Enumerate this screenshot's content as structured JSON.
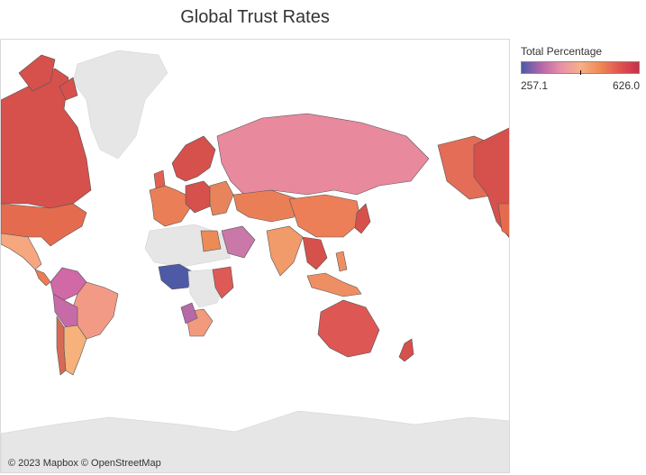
{
  "title": "Global Trust Rates",
  "legend": {
    "title": "Total Percentage",
    "min_label": "257.1",
    "max_label": "626.0",
    "min": 257.1,
    "max": 626.0,
    "colors": [
      "#4a5aa8",
      "#b566a8",
      "#e98fa8",
      "#f6b089",
      "#ef8a55",
      "#e0544f",
      "#c8304a"
    ]
  },
  "map": {
    "no_data_color": "#e6e6e6",
    "ocean_color": "#ffffff"
  },
  "attribution": "© 2023 Mapbox © OpenStreetMap"
}
